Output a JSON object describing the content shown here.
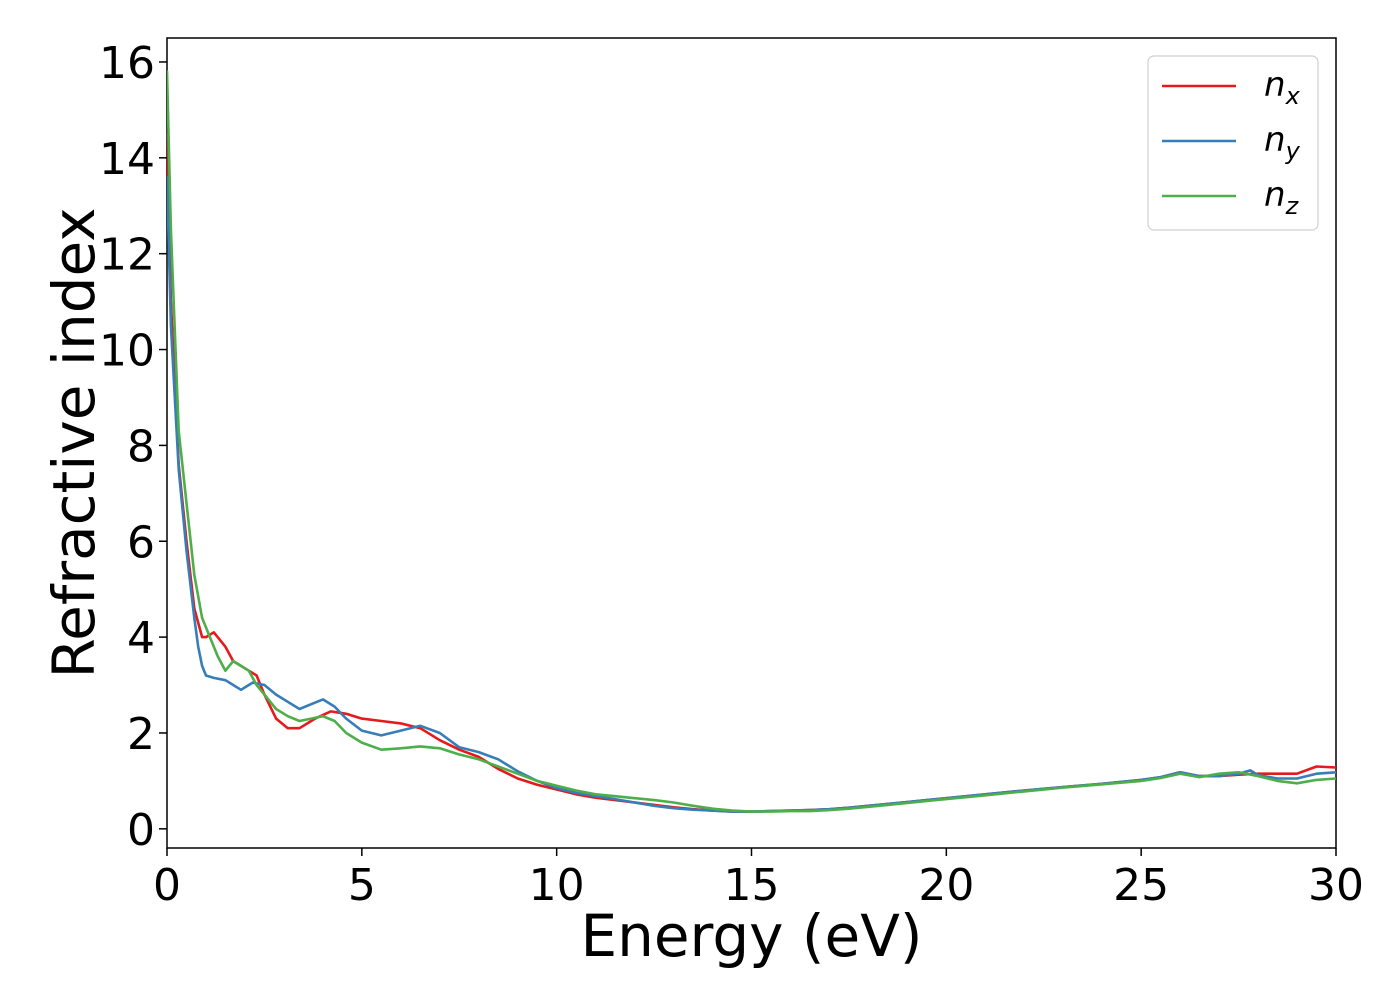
{
  "chart_data": {
    "type": "line",
    "title": "",
    "xlabel": "Energy (eV)",
    "ylabel": "Refractive index",
    "xlim": [
      0,
      30
    ],
    "ylim": [
      -0.4,
      16.5
    ],
    "xticks": [
      0,
      5,
      10,
      15,
      20,
      25,
      30
    ],
    "yticks": [
      0,
      2,
      4,
      6,
      8,
      10,
      12,
      14,
      16
    ],
    "grid": false,
    "legend_position": "top-right",
    "series": [
      {
        "name": "n",
        "subscript": "x",
        "color": "#e41a1c",
        "x": [
          0,
          0.1,
          0.3,
          0.5,
          0.7,
          0.9,
          1.0,
          1.2,
          1.5,
          1.7,
          1.9,
          2.1,
          2.3,
          2.5,
          2.8,
          3.1,
          3.4,
          3.8,
          4.2,
          4.6,
          5.0,
          5.5,
          6.0,
          6.5,
          7.0,
          7.5,
          8.0,
          8.5,
          9.0,
          9.5,
          10.0,
          10.5,
          11.0,
          11.5,
          12.0,
          12.5,
          13.0,
          13.5,
          14.0,
          14.5,
          15.0,
          15.5,
          16.0,
          16.5,
          17.0,
          17.5,
          18.0,
          18.5,
          19.0,
          19.5,
          20.0,
          21.0,
          22.0,
          23.0,
          24.0,
          25.0,
          25.5,
          26.0,
          26.5,
          27.0,
          27.5,
          28.0,
          28.5,
          29.0,
          29.5,
          30.0
        ],
        "y": [
          14.5,
          11.0,
          7.6,
          6.0,
          4.6,
          4.0,
          4.0,
          4.1,
          3.8,
          3.5,
          3.4,
          3.3,
          3.2,
          2.8,
          2.3,
          2.1,
          2.1,
          2.3,
          2.45,
          2.4,
          2.3,
          2.25,
          2.2,
          2.1,
          1.85,
          1.65,
          1.5,
          1.25,
          1.05,
          0.92,
          0.82,
          0.72,
          0.65,
          0.6,
          0.55,
          0.5,
          0.45,
          0.41,
          0.38,
          0.36,
          0.36,
          0.37,
          0.38,
          0.39,
          0.41,
          0.44,
          0.48,
          0.52,
          0.56,
          0.6,
          0.64,
          0.72,
          0.8,
          0.87,
          0.94,
          1.02,
          1.08,
          1.18,
          1.1,
          1.1,
          1.13,
          1.15,
          1.15,
          1.15,
          1.3,
          1.28
        ]
      },
      {
        "name": "n",
        "subscript": "y",
        "color": "#377eb8",
        "x": [
          0,
          0.1,
          0.3,
          0.5,
          0.7,
          0.8,
          0.9,
          1.0,
          1.2,
          1.5,
          1.7,
          1.9,
          2.0,
          2.2,
          2.5,
          2.8,
          3.1,
          3.4,
          3.7,
          4.0,
          4.3,
          4.6,
          5.0,
          5.5,
          6.0,
          6.5,
          7.0,
          7.5,
          8.0,
          8.5,
          9.0,
          9.5,
          10.0,
          10.5,
          11.0,
          11.5,
          12.0,
          12.5,
          13.0,
          13.5,
          14.0,
          14.5,
          15.0,
          15.5,
          16.0,
          16.5,
          17.0,
          17.5,
          18.0,
          18.5,
          19.0,
          19.5,
          20.0,
          21.0,
          22.0,
          23.0,
          24.0,
          25.0,
          25.5,
          26.0,
          26.5,
          27.0,
          27.5,
          27.8,
          28.0,
          28.5,
          29.0,
          29.5,
          30.0
        ],
        "y": [
          13.6,
          10.5,
          7.5,
          5.8,
          4.4,
          3.8,
          3.4,
          3.2,
          3.15,
          3.1,
          3.0,
          2.9,
          2.95,
          3.05,
          3.0,
          2.8,
          2.65,
          2.5,
          2.6,
          2.7,
          2.55,
          2.3,
          2.05,
          1.95,
          2.05,
          2.15,
          2.0,
          1.7,
          1.6,
          1.45,
          1.2,
          1.0,
          0.85,
          0.75,
          0.68,
          0.62,
          0.55,
          0.48,
          0.43,
          0.4,
          0.38,
          0.36,
          0.36,
          0.37,
          0.38,
          0.39,
          0.41,
          0.44,
          0.48,
          0.52,
          0.56,
          0.6,
          0.64,
          0.72,
          0.8,
          0.87,
          0.94,
          1.02,
          1.08,
          1.18,
          1.1,
          1.1,
          1.15,
          1.22,
          1.12,
          1.05,
          1.05,
          1.15,
          1.18
        ]
      },
      {
        "name": "n",
        "subscript": "z",
        "color": "#4daf4a",
        "x": [
          0,
          0.1,
          0.3,
          0.5,
          0.7,
          0.9,
          1.1,
          1.3,
          1.5,
          1.7,
          1.9,
          2.1,
          2.3,
          2.5,
          2.8,
          3.1,
          3.4,
          3.7,
          4.0,
          4.3,
          4.6,
          5.0,
          5.5,
          6.0,
          6.5,
          7.0,
          7.5,
          8.0,
          8.5,
          9.0,
          9.5,
          10.0,
          10.5,
          11.0,
          11.5,
          12.0,
          12.5,
          13.0,
          13.5,
          14.0,
          14.5,
          15.0,
          15.5,
          16.0,
          16.5,
          17.0,
          17.5,
          18.0,
          18.5,
          19.0,
          19.5,
          20.0,
          21.0,
          22.0,
          23.0,
          24.0,
          25.0,
          25.5,
          26.0,
          26.5,
          27.0,
          27.5,
          28.0,
          28.5,
          29.0,
          29.5,
          30.0
        ],
        "y": [
          15.8,
          12.5,
          8.3,
          6.8,
          5.3,
          4.4,
          4.0,
          3.6,
          3.3,
          3.5,
          3.4,
          3.3,
          3.0,
          2.8,
          2.5,
          2.35,
          2.25,
          2.3,
          2.35,
          2.25,
          2.0,
          1.8,
          1.65,
          1.68,
          1.72,
          1.68,
          1.55,
          1.45,
          1.3,
          1.15,
          1.0,
          0.9,
          0.8,
          0.72,
          0.68,
          0.64,
          0.6,
          0.55,
          0.48,
          0.42,
          0.38,
          0.36,
          0.36,
          0.37,
          0.37,
          0.39,
          0.42,
          0.46,
          0.5,
          0.54,
          0.58,
          0.62,
          0.7,
          0.78,
          0.86,
          0.93,
          1.0,
          1.06,
          1.15,
          1.08,
          1.15,
          1.18,
          1.1,
          1.0,
          0.95,
          1.02,
          1.05
        ]
      }
    ]
  }
}
